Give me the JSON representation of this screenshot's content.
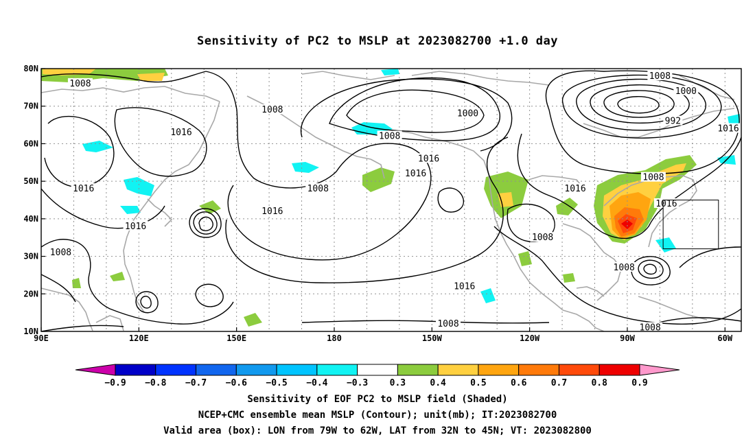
{
  "title": "Sensitivity of PC2 to MSLP at 2023082700 +1.0 day",
  "map": {
    "lon_range": [
      90,
      305
    ],
    "lat_range": [
      10,
      80
    ],
    "y_ticks": [
      "80N",
      "70N",
      "60N",
      "50N",
      "40N",
      "30N",
      "20N",
      "10N"
    ],
    "y_tick_values": [
      80,
      70,
      60,
      50,
      40,
      30,
      20,
      10
    ],
    "x_ticks": [
      "90E",
      "120E",
      "150E",
      "180",
      "150W",
      "120W",
      "90W",
      "60W"
    ],
    "x_tick_values": [
      90,
      120,
      150,
      180,
      210,
      240,
      270,
      300
    ],
    "grid": "dotted",
    "valid_box": {
      "lon": [
        281,
        298
      ],
      "lat": [
        32,
        45
      ]
    }
  },
  "contour_labels": [
    {
      "text": "1008",
      "lon": 102,
      "lat": 76
    },
    {
      "text": "1008",
      "lon": 161,
      "lat": 69
    },
    {
      "text": "1016",
      "lon": 133,
      "lat": 63
    },
    {
      "text": "1000",
      "lon": 221,
      "lat": 68
    },
    {
      "text": "1008",
      "lon": 197,
      "lat": 62
    },
    {
      "text": "1016",
      "lon": 209,
      "lat": 56
    },
    {
      "text": "1016",
      "lon": 205,
      "lat": 52
    },
    {
      "text": "1008",
      "lon": 175,
      "lat": 48
    },
    {
      "text": "1016",
      "lon": 161,
      "lat": 42
    },
    {
      "text": "1016",
      "lon": 103,
      "lat": 48
    },
    {
      "text": "1016",
      "lon": 119,
      "lat": 38
    },
    {
      "text": "1008",
      "lon": 96,
      "lat": 31
    },
    {
      "text": "1016",
      "lon": 254,
      "lat": 48
    },
    {
      "text": "1008",
      "lon": 244,
      "lat": 35
    },
    {
      "text": "1008",
      "lon": 269,
      "lat": 27
    },
    {
      "text": "1016",
      "lon": 220,
      "lat": 22
    },
    {
      "text": "1008",
      "lon": 215,
      "lat": 12
    },
    {
      "text": "1008",
      "lon": 277,
      "lat": 11
    },
    {
      "text": "1008",
      "lon": 278,
      "lat": 51
    },
    {
      "text": "1016",
      "lon": 282,
      "lat": 44
    },
    {
      "text": "1008",
      "lon": 280,
      "lat": 78
    },
    {
      "text": "1000",
      "lon": 288,
      "lat": 74
    },
    {
      "text": "992",
      "lon": 284,
      "lat": 66
    },
    {
      "text": "1016",
      "lon": 301,
      "lat": 64
    }
  ],
  "colorbar": {
    "colors": [
      "#cc00aa",
      "#0000c8",
      "#0033ff",
      "#1166ee",
      "#1199ee",
      "#00c4ff",
      "#11f3f3",
      "#ffffff",
      "#8ccc3e",
      "#ffd040",
      "#ffa510",
      "#ff7a0a",
      "#ff4a0a",
      "#ee0000",
      "#ff99cc"
    ],
    "labels": [
      "−0.9",
      "−0.8",
      "−0.7",
      "−0.6",
      "−0.5",
      "−0.4",
      "−0.3",
      "0.3",
      "0.4",
      "0.5",
      "0.6",
      "0.7",
      "0.8",
      "0.9"
    ],
    "boundaries": [
      -0.9,
      -0.8,
      -0.7,
      -0.6,
      -0.5,
      -0.4,
      -0.3,
      0.3,
      0.4,
      0.5,
      0.6,
      0.7,
      0.8,
      0.9
    ]
  },
  "captions": [
    "Sensitivity of EOF PC2 to MSLP field (Shaded)",
    "NCEP+CMC ensemble mean MSLP (Contour); unit(mb); IT:2023082700",
    "Valid area (box): LON from 79W to 62W, LAT from 32N to 45N; VT: 2023082800"
  ]
}
